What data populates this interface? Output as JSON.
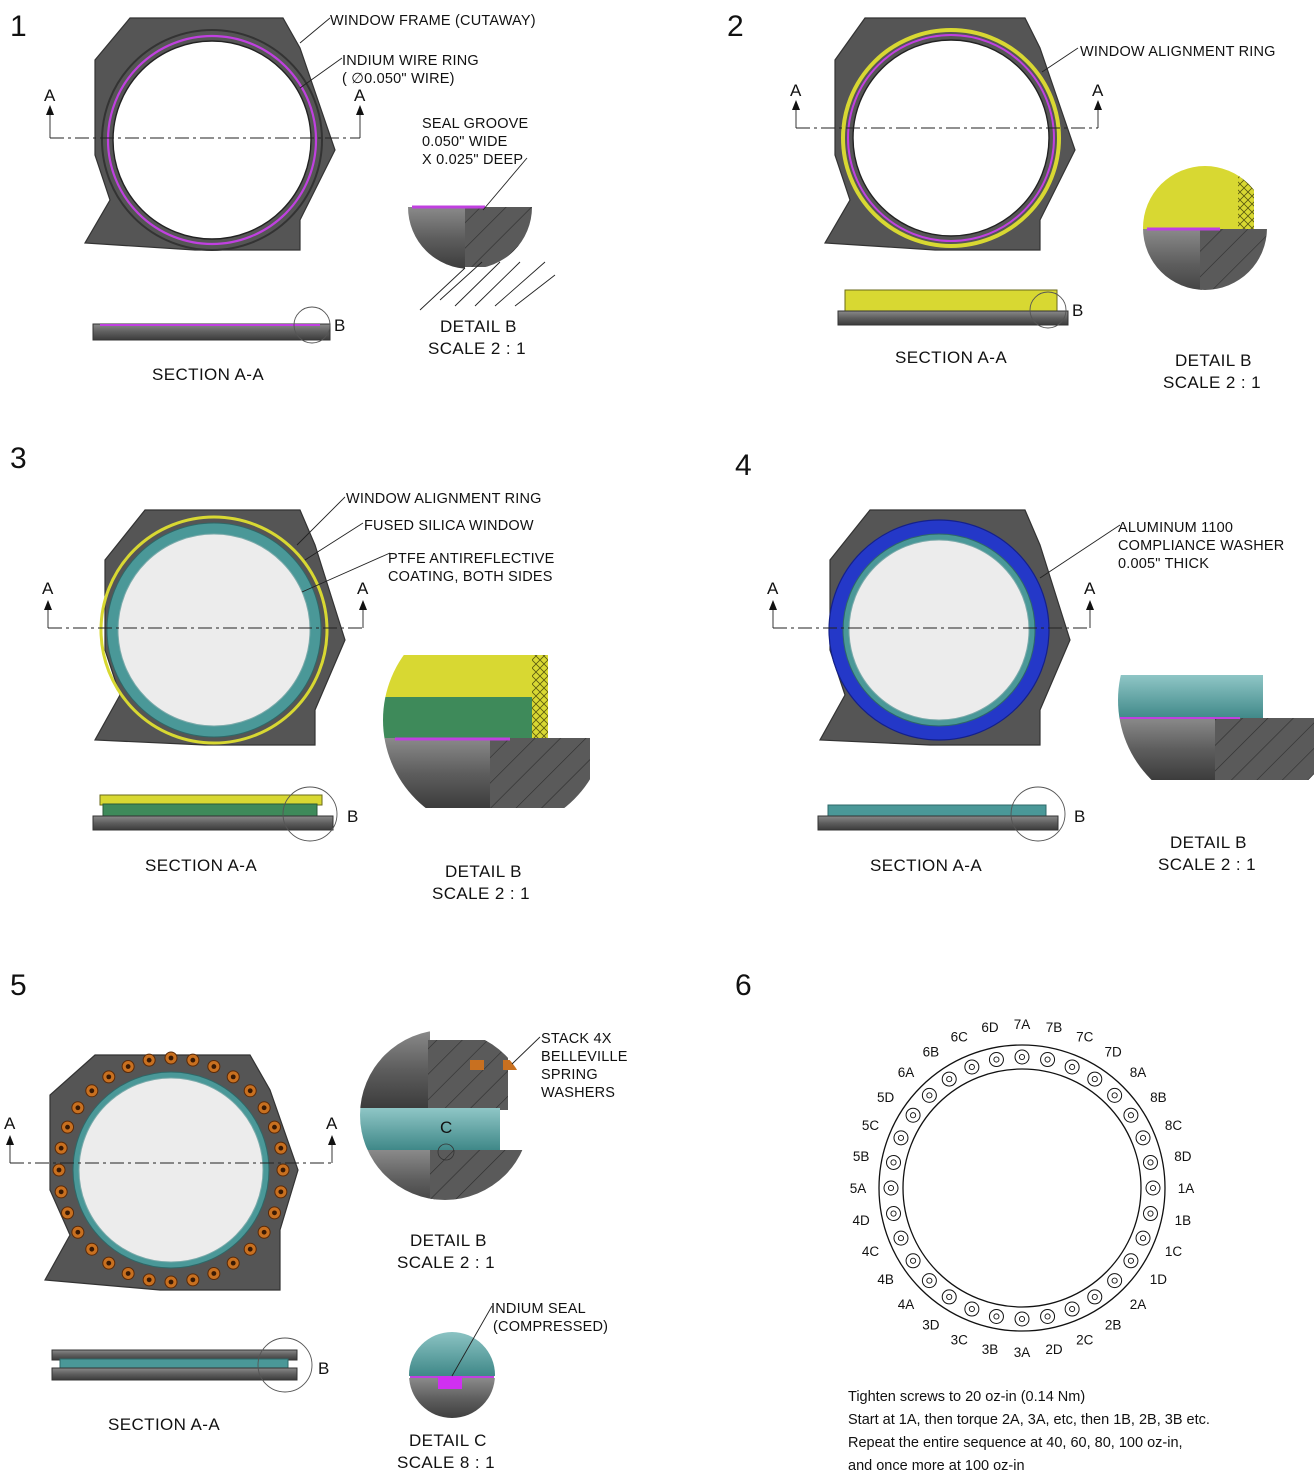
{
  "panels": [
    {
      "number": "1",
      "callouts": [
        "WINDOW FRAME (CUTAWAY)",
        "INDIUM WIRE RING",
        "( ∅0.050\" WIRE)",
        "SEAL GROOVE",
        "0.050\" WIDE",
        "X 0.025\" DEEP"
      ],
      "section_marker": "A",
      "section_caption": "SECTION A-A",
      "detail_marker": "B",
      "detail_title": "DETAIL B",
      "detail_scale": "SCALE 2 : 1"
    },
    {
      "number": "2",
      "callouts": [
        "WINDOW ALIGNMENT RING"
      ],
      "section_marker": "A",
      "section_caption": "SECTION A-A",
      "detail_marker": "B",
      "detail_title": "DETAIL B",
      "detail_scale": "SCALE 2 : 1"
    },
    {
      "number": "3",
      "callouts": [
        "WINDOW ALIGNMENT RING",
        "FUSED SILICA WINDOW",
        "PTFE ANTIREFLECTIVE",
        "COATING, BOTH SIDES"
      ],
      "section_marker": "A",
      "section_caption": "SECTION A-A",
      "detail_marker": "B",
      "detail_title": "DETAIL B",
      "detail_scale": "SCALE 2 : 1"
    },
    {
      "number": "4",
      "callouts": [
        "ALUMINUM 1100",
        "COMPLIANCE WASHER",
        "0.005\" THICK"
      ],
      "section_marker": "A",
      "section_caption": "SECTION A-A",
      "detail_marker": "B",
      "detail_title": "DETAIL B",
      "detail_scale": "SCALE 2 : 1"
    },
    {
      "number": "5",
      "callouts": [
        "STACK 4X",
        "BELLEVILLE",
        "SPRING",
        "WASHERS",
        "INDIUM SEAL",
        "(COMPRESSED)"
      ],
      "section_marker": "A",
      "section_caption": "SECTION A-A",
      "detail_marker": "B",
      "detail_title": "DETAIL B",
      "detail_scale": "SCALE 2 : 1",
      "detail_c_marker": "C",
      "detail_c_title": "DETAIL C",
      "detail_c_scale": "SCALE 8 : 1"
    },
    {
      "number": "6",
      "bolts": [
        "1A",
        "1B",
        "1C",
        "1D",
        "2A",
        "2B",
        "2C",
        "2D",
        "3A",
        "3B",
        "3C",
        "3D",
        "4A",
        "4B",
        "4C",
        "4D",
        "5A",
        "5B",
        "5C",
        "5D",
        "6A",
        "6B",
        "6C",
        "6D",
        "7A",
        "7B",
        "7C",
        "7D",
        "8A",
        "8B",
        "8C",
        "8D"
      ],
      "notes": [
        "Tighten screws to 20 oz-in  (0.14 Nm)",
        "Start at 1A, then torque 2A, 3A, etc, then 1B, 2B, 3B etc.",
        "Repeat the entire sequence at 40, 60, 80, 100 oz-in,",
        "and once more at 100 oz-in"
      ]
    }
  ],
  "colors": {
    "frame": "#555555",
    "indium": "#c040e0",
    "alignment_ring": "#d8d832",
    "window_edge": "#4a9898",
    "window_face": "#ececec",
    "washer": "#2438c8",
    "spring_washer": "#c87020"
  }
}
